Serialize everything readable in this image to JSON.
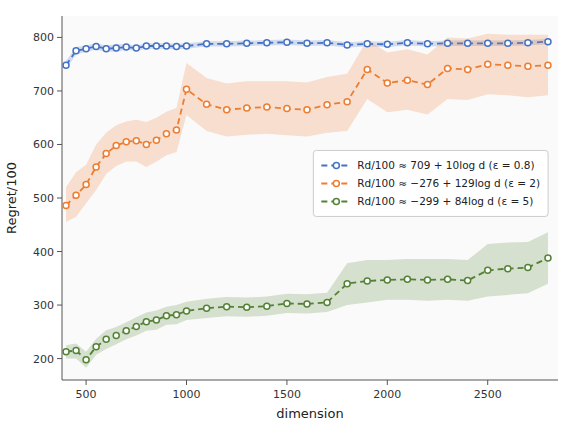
{
  "chart_data": {
    "type": "line",
    "x_label": "dimension",
    "y_label": "Regret/100",
    "xlim": [
      380,
      2850
    ],
    "ylim": [
      160,
      840
    ],
    "xticks": [
      500,
      1000,
      1500,
      2000,
      2500
    ],
    "yticks": [
      200,
      300,
      400,
      500,
      600,
      700,
      800
    ],
    "grid": false,
    "legend": "right",
    "line_style": "dashed",
    "marker": "circle",
    "series": [
      {
        "name": "Rd/100 ≈ 709 + 10log d (ε = 0.8)",
        "color": "#4472c4",
        "x": [
          400,
          450,
          500,
          550,
          600,
          650,
          700,
          750,
          800,
          850,
          900,
          950,
          1000,
          1100,
          1200,
          1300,
          1400,
          1500,
          1600,
          1700,
          1800,
          1900,
          2000,
          2100,
          2200,
          2300,
          2400,
          2500,
          2600,
          2700,
          2800
        ],
        "values": [
          748,
          775,
          779,
          783,
          779,
          780,
          782,
          780,
          784,
          784,
          784,
          783,
          784,
          788,
          788,
          789,
          790,
          791,
          789,
          790,
          786,
          788,
          787,
          790,
          788,
          789,
          789,
          789,
          789,
          790,
          792
        ],
        "y_low": [
          740,
          768,
          773,
          777,
          773,
          773,
          777,
          775,
          779,
          779,
          779,
          778,
          779,
          783,
          783,
          784,
          785,
          786,
          784,
          785,
          781,
          783,
          782,
          785,
          783,
          784,
          784,
          784,
          784,
          785,
          787
        ],
        "y_high": [
          756,
          782,
          785,
          789,
          785,
          787,
          787,
          785,
          789,
          789,
          789,
          788,
          789,
          793,
          793,
          794,
          795,
          796,
          794,
          795,
          791,
          793,
          792,
          795,
          793,
          794,
          794,
          794,
          794,
          795,
          797
        ]
      },
      {
        "name": "Rd/100 ≈ −276 + 129log d (ε = 2)",
        "color": "#ed7d31",
        "x": [
          400,
          450,
          500,
          550,
          600,
          650,
          700,
          750,
          800,
          850,
          900,
          950,
          1000,
          1100,
          1200,
          1300,
          1400,
          1500,
          1600,
          1700,
          1800,
          1900,
          2000,
          2100,
          2200,
          2300,
          2400,
          2500,
          2600,
          2700,
          2800
        ],
        "values": [
          486,
          505,
          525,
          558,
          583,
          598,
          605,
          607,
          600,
          608,
          620,
          627,
          703,
          675,
          665,
          668,
          670,
          667,
          665,
          674,
          680,
          740,
          715,
          720,
          712,
          742,
          740,
          750,
          748,
          746,
          748
        ],
        "y_low": [
          455,
          465,
          490,
          515,
          545,
          560,
          568,
          568,
          558,
          568,
          580,
          586,
          655,
          625,
          615,
          618,
          620,
          617,
          615,
          622,
          625,
          685,
          660,
          665,
          656,
          685,
          683,
          694,
          692,
          688,
          692
        ],
        "y_high": [
          520,
          548,
          562,
          600,
          622,
          636,
          643,
          646,
          642,
          650,
          661,
          668,
          752,
          724,
          714,
          718,
          718,
          718,
          716,
          726,
          732,
          795,
          772,
          778,
          768,
          800,
          798,
          807,
          805,
          805,
          805
        ]
      },
      {
        "name": "Rd/100 ≈ −299 + 84log d (ε = 5)",
        "color": "#548235",
        "x": [
          400,
          450,
          500,
          550,
          600,
          650,
          700,
          750,
          800,
          850,
          900,
          950,
          1000,
          1100,
          1200,
          1300,
          1400,
          1500,
          1600,
          1700,
          1800,
          1900,
          2000,
          2100,
          2200,
          2300,
          2400,
          2500,
          2600,
          2700,
          2800
        ],
        "values": [
          213,
          215,
          198,
          222,
          236,
          243,
          252,
          260,
          269,
          272,
          280,
          282,
          289,
          294,
          297,
          296,
          298,
          303,
          302,
          305,
          340,
          345,
          347,
          348,
          347,
          348,
          346,
          365,
          368,
          370,
          388
        ],
        "y_low": [
          200,
          200,
          183,
          207,
          218,
          227,
          236,
          243,
          252,
          254,
          263,
          264,
          272,
          276,
          279,
          278,
          280,
          285,
          284,
          287,
          300,
          305,
          310,
          310,
          308,
          310,
          308,
          316,
          319,
          322,
          340
        ],
        "y_high": [
          225,
          228,
          213,
          237,
          253,
          259,
          268,
          277,
          286,
          290,
          297,
          300,
          306,
          312,
          315,
          314,
          316,
          321,
          320,
          323,
          378,
          384,
          384,
          386,
          386,
          386,
          384,
          414,
          417,
          418,
          436
        ]
      }
    ]
  }
}
